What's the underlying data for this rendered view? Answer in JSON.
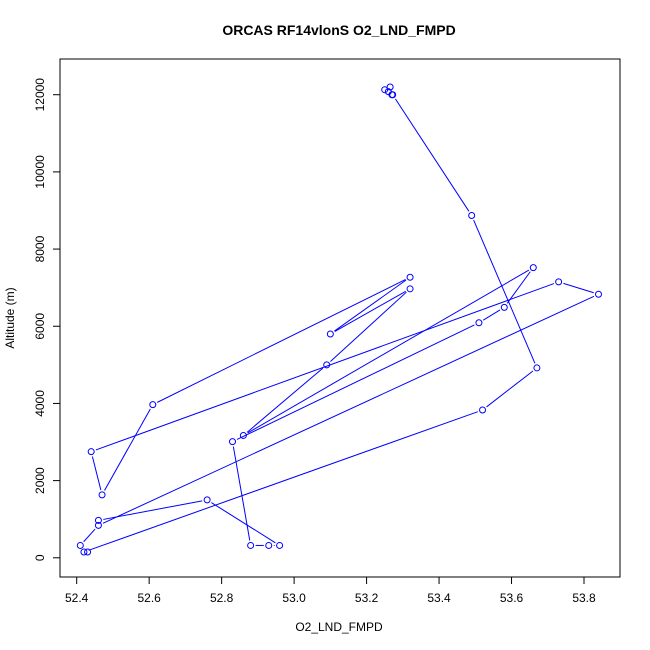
{
  "chart_data": {
    "type": "line",
    "title": "ORCAS RF14vlonS O2_LND_FMPD",
    "xlabel": "O2_LND_FMPD",
    "ylabel": "Altitude (m)",
    "xlim": [
      52.405,
      53.84
    ],
    "ylim": [
      150,
      12200
    ],
    "xticks": [
      52.4,
      52.6,
      52.8,
      53.0,
      53.2,
      53.4,
      53.6,
      53.8
    ],
    "xtick_labels": [
      "52.4",
      "52.6",
      "52.8",
      "53.0",
      "53.2",
      "53.4",
      "53.6",
      "53.8"
    ],
    "yticks": [
      0,
      2000,
      4000,
      6000,
      8000,
      10000,
      12000
    ],
    "ytick_labels": [
      "0",
      "2000",
      "4000",
      "6000",
      "8000",
      "10000",
      "12000"
    ],
    "grid": false,
    "series": [
      {
        "color": "#0000ff",
        "marker": "open-circle",
        "points": [
          {
            "x": 53.25,
            "y": 12130
          },
          {
            "x": 53.265,
            "y": 12200
          },
          {
            "x": 53.26,
            "y": 12080
          },
          {
            "x": 53.27,
            "y": 12000
          },
          {
            "x": 53.272,
            "y": 12000
          },
          {
            "x": 53.49,
            "y": 8870
          },
          {
            "x": 53.67,
            "y": 4920
          },
          {
            "x": 53.52,
            "y": 3830
          },
          {
            "x": 52.42,
            "y": 150
          },
          {
            "x": 52.43,
            "y": 150
          },
          {
            "x": 52.41,
            "y": 320
          },
          {
            "x": 52.46,
            "y": 840
          },
          {
            "x": 53.84,
            "y": 6830
          },
          {
            "x": 53.73,
            "y": 7150
          },
          {
            "x": 52.44,
            "y": 2750
          },
          {
            "x": 52.47,
            "y": 1630
          },
          {
            "x": 52.61,
            "y": 3970
          },
          {
            "x": 53.32,
            "y": 7270
          },
          {
            "x": 53.1,
            "y": 5800
          },
          {
            "x": 53.32,
            "y": 6970
          },
          {
            "x": 53.09,
            "y": 5000
          },
          {
            "x": 52.86,
            "y": 3170
          },
          {
            "x": 53.66,
            "y": 7520
          },
          {
            "x": 53.58,
            "y": 6490
          },
          {
            "x": 53.51,
            "y": 6090
          },
          {
            "x": 52.83,
            "y": 3010
          },
          {
            "x": 52.88,
            "y": 320
          },
          {
            "x": 52.93,
            "y": 320
          },
          {
            "x": 52.96,
            "y": 320
          },
          {
            "x": 52.76,
            "y": 1500
          },
          {
            "x": 52.46,
            "y": 970
          }
        ]
      }
    ]
  }
}
